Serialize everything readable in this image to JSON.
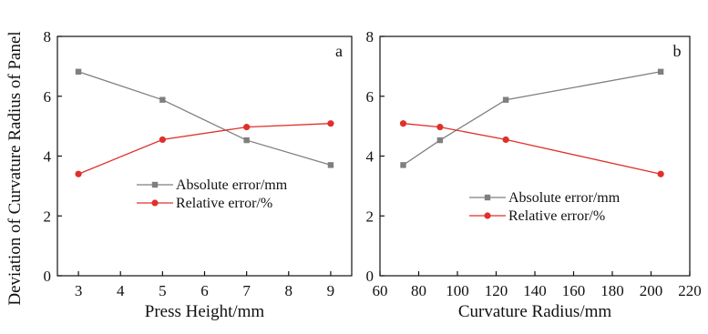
{
  "colors": {
    "absolute": "#7f7f7f",
    "relative": "#e0302b",
    "axis": "#111111"
  },
  "ylabel": "Deviation of Curvature Radius of Panel",
  "chart_data": [
    {
      "type": "line",
      "panel": "a",
      "xlabel": "Press Height/mm",
      "ylabel": "Deviation of Curvature Radius of Panel",
      "xlim": [
        2.5,
        9.5
      ],
      "ylim": [
        0,
        8
      ],
      "xticks": [
        3,
        4,
        5,
        6,
        7,
        8,
        9
      ],
      "yticks": [
        0,
        2,
        4,
        6,
        8
      ],
      "legend_position": "center-right",
      "grid": false,
      "series": [
        {
          "name": "Absolute error/mm",
          "marker": "square",
          "color": "#7f7f7f",
          "x": [
            3,
            5,
            7,
            9
          ],
          "y": [
            6.82,
            5.88,
            4.53,
            3.7
          ]
        },
        {
          "name": "Relative error/%",
          "marker": "circle",
          "color": "#e0302b",
          "x": [
            3,
            5,
            7,
            9
          ],
          "y": [
            3.4,
            4.55,
            4.97,
            5.09
          ]
        }
      ]
    },
    {
      "type": "line",
      "panel": "b",
      "xlabel": "Curvature Radius/mm",
      "ylabel": "",
      "xlim": [
        60,
        220
      ],
      "ylim": [
        0,
        8
      ],
      "xticks": [
        60,
        80,
        100,
        120,
        140,
        160,
        180,
        200,
        220
      ],
      "yticks": [
        0,
        2,
        4,
        6,
        8
      ],
      "legend_position": "bottom-right",
      "grid": false,
      "series": [
        {
          "name": "Absolute error/mm",
          "marker": "square",
          "color": "#7f7f7f",
          "x": [
            72,
            91,
            125,
            205
          ],
          "y": [
            3.7,
            4.53,
            5.88,
            6.82
          ]
        },
        {
          "name": "Relative error/%",
          "marker": "circle",
          "color": "#e0302b",
          "x": [
            72,
            91,
            125,
            205
          ],
          "y": [
            5.09,
            4.97,
            4.55,
            3.4
          ]
        }
      ]
    }
  ]
}
